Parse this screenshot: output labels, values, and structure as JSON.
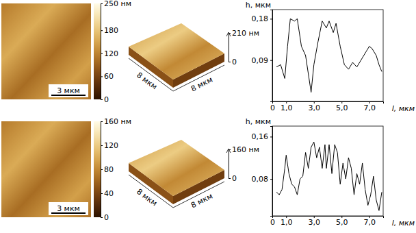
{
  "chart_data": [
    {
      "type": "image",
      "scale_bar": "3 мкм",
      "colorbar_range": [
        0,
        250
      ],
      "colorbar_ticks": [
        0,
        60,
        120,
        180,
        {
          "value": 250,
          "label": "250 нм"
        }
      ]
    },
    {
      "type": "surface",
      "x_label": "8 мкм",
      "y_label": "8 мкм",
      "zlim": [
        0,
        210
      ],
      "zticks": [
        0,
        {
          "value": 210,
          "label": "210 нм"
        }
      ]
    },
    {
      "type": "line",
      "x_label": "l, мкм",
      "y_label": "h, мкм",
      "x": [
        0.3,
        0.6,
        0.9,
        1.1,
        1.3,
        1.6,
        1.8,
        2.1,
        2.4,
        2.8,
        3.0,
        3.3,
        3.6,
        3.9,
        4.1,
        4.4,
        4.6,
        4.9,
        5.2,
        5.5,
        5.8,
        6.1,
        6.4,
        6.8,
        7.0,
        7.2,
        7.5,
        7.7,
        7.9
      ],
      "series": [
        {
          "color": "#000000",
          "values": [
            0.075,
            0.08,
            0.05,
            0.12,
            0.18,
            0.175,
            0.18,
            0.12,
            0.1,
            0.02,
            0.08,
            0.13,
            0.175,
            0.16,
            0.175,
            0.15,
            0.17,
            0.12,
            0.08,
            0.07,
            0.085,
            0.075,
            0.09,
            0.11,
            0.12,
            0.115,
            0.1,
            0.08,
            0.065
          ]
        }
      ],
      "xlim": [
        0,
        8
      ],
      "ylim": [
        0,
        0.2
      ],
      "xticks": [
        0,
        {
          "value": 1,
          "label": "1,0"
        },
        {
          "value": 3,
          "label": "3,0"
        },
        {
          "value": 5,
          "label": "5,0"
        },
        {
          "value": 7,
          "label": "7,0"
        }
      ],
      "yticks": [
        {
          "value": 0.09,
          "label": "0,09"
        },
        {
          "value": 0.18,
          "label": "0,18"
        }
      ],
      "grid": false
    },
    {
      "type": "image",
      "scale_bar": "3 мкм",
      "colorbar_range": [
        0,
        160
      ],
      "colorbar_ticks": [
        0,
        40,
        80,
        120,
        {
          "value": 160,
          "label": "160 нм"
        }
      ]
    },
    {
      "type": "surface",
      "x_label": "8 мкм",
      "y_label": "8 мкм",
      "zlim": [
        0,
        160
      ],
      "zticks": [
        0,
        {
          "value": 160,
          "label": "160 нм"
        }
      ]
    },
    {
      "type": "line",
      "x_label": "l, мкм",
      "y_label": "h, мкм",
      "x": [
        0.3,
        0.5,
        0.7,
        0.9,
        1.0,
        1.2,
        1.4,
        1.6,
        1.8,
        2.0,
        2.2,
        2.4,
        2.6,
        2.8,
        3.0,
        3.2,
        3.4,
        3.6,
        3.8,
        3.9,
        4.1,
        4.3,
        4.5,
        4.7,
        4.9,
        5.1,
        5.3,
        5.5,
        5.7,
        5.9,
        6.1,
        6.3,
        6.5,
        6.7,
        6.9,
        7.1,
        7.3,
        7.5,
        7.7,
        7.9
      ],
      "series": [
        {
          "color": "#000000",
          "values": [
            0.055,
            0.05,
            0.06,
            0.1,
            0.125,
            0.09,
            0.07,
            0.065,
            0.05,
            0.08,
            0.085,
            0.13,
            0.1,
            0.14,
            0.15,
            0.12,
            0.14,
            0.1,
            0.145,
            0.1,
            0.145,
            0.09,
            0.145,
            0.13,
            0.07,
            0.11,
            0.08,
            0.12,
            0.1,
            0.05,
            0.09,
            0.07,
            0.11,
            0.06,
            0.03,
            0.05,
            0.085,
            0.04,
            0.02,
            0.055
          ]
        }
      ],
      "xlim": [
        0,
        8
      ],
      "ylim": [
        0.01,
        0.18
      ],
      "xticks": [
        0,
        {
          "value": 1,
          "label": "1,0"
        },
        {
          "value": 3,
          "label": "3,0"
        },
        {
          "value": 5,
          "label": "5,0"
        },
        {
          "value": 7,
          "label": "7,0"
        }
      ],
      "yticks": [
        {
          "value": 0.08,
          "label": "0,08"
        },
        {
          "value": 0.16,
          "label": "0,16"
        }
      ],
      "grid": false
    }
  ]
}
